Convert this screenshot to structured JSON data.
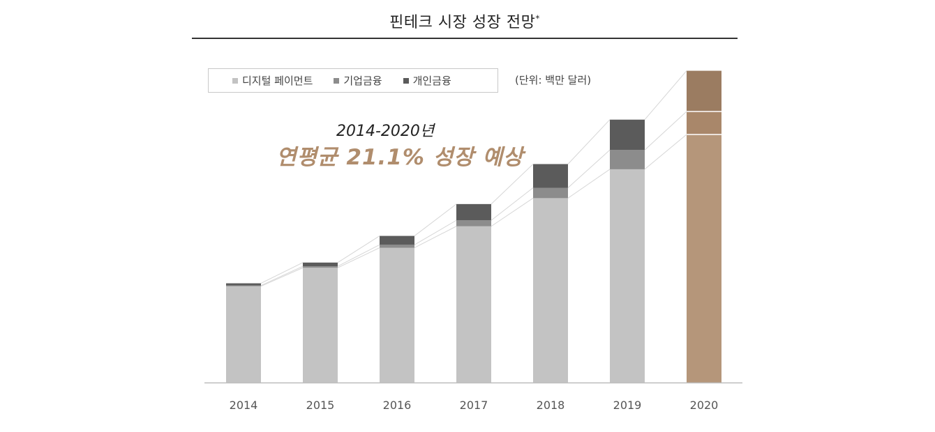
{
  "title": "핀테크 시장 성장 전망",
  "title_mark": "*",
  "unit_label": "(단위: 백만 달러)",
  "callout": {
    "line1": "2014-2020년",
    "line2": "연평균 21.1% 성장 예상"
  },
  "colors": {
    "digital_payment": "#c3c3c3",
    "corporate_finance": "#8c8c8c",
    "personal_finance": "#5b5b5b",
    "forecast_digital": "#b5967a",
    "forecast_corporate": "#a9876a",
    "forecast_personal": "#9b7c61",
    "callout_accent": "#b08d6d"
  },
  "chart_data": {
    "type": "bar",
    "stacked": true,
    "categories": [
      "2014",
      "2015",
      "2016",
      "2017",
      "2018",
      "2019",
      "2020"
    ],
    "series": [
      {
        "name": "디지털 페이먼트",
        "values": [
          130,
          155,
          182,
          211,
          249,
          288,
          335
        ]
      },
      {
        "name": "기업금융",
        "values": [
          1,
          2,
          4,
          8,
          14,
          26,
          31
        ]
      },
      {
        "name": "개인금융",
        "values": [
          3,
          5,
          12,
          22,
          32,
          41,
          55
        ]
      }
    ],
    "forecast_category": "2020",
    "ylim": [
      0,
      430
    ],
    "grid": false,
    "legend": "top-left",
    "xlabel": "",
    "ylabel": ""
  }
}
